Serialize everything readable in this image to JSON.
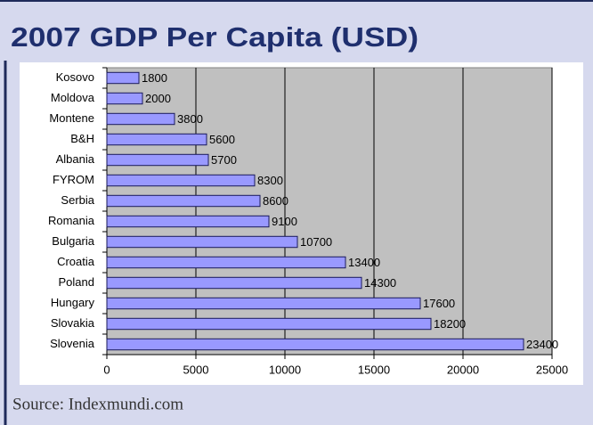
{
  "chart_data": {
    "type": "bar",
    "orientation": "horizontal",
    "title": "2007 GDP Per Capita (USD)",
    "categories": [
      "Kosovo",
      "Moldova",
      "Montene",
      "B&H",
      "Albania",
      "FYROM",
      "Serbia",
      "Romania",
      "Bulgaria",
      "Croatia",
      "Poland",
      "Hungary",
      "Slovakia",
      "Slovenia"
    ],
    "values": [
      1800,
      2000,
      3800,
      5600,
      5700,
      8300,
      8600,
      9100,
      10700,
      13400,
      14300,
      17600,
      18200,
      23400
    ],
    "color": "#9999ff",
    "xlim": [
      0,
      25000
    ],
    "xticks": [
      0,
      5000,
      10000,
      15000,
      20000,
      25000
    ],
    "grid": true,
    "source": "Source: Indexmundi.com"
  }
}
